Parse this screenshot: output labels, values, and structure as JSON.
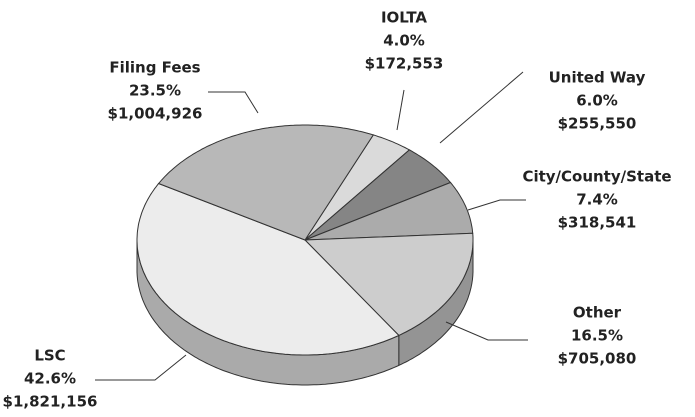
{
  "chart_data": {
    "type": "pie3d",
    "categories": [
      "IOLTA",
      "United Way",
      "City/County/State",
      "Other",
      "LSC",
      "Filing Fees"
    ],
    "values": [
      4.0,
      6.0,
      7.4,
      16.5,
      42.6,
      23.5
    ],
    "value_labels": [
      "4.0%",
      "6.0%",
      "7.4%",
      "16.5%",
      "42.6%",
      "23.5%"
    ],
    "amounts": [
      172553,
      255550,
      318541,
      705080,
      1821156,
      1004926
    ],
    "amount_labels": [
      "$172,553",
      "$255,550",
      "$318,541",
      "$705,080",
      "$1,821,156",
      "$1,004,926"
    ],
    "colors": [
      "#dadada",
      "#858585",
      "#ababab",
      "#cdcdcd",
      "#ececec",
      "#b8b8b8"
    ]
  }
}
